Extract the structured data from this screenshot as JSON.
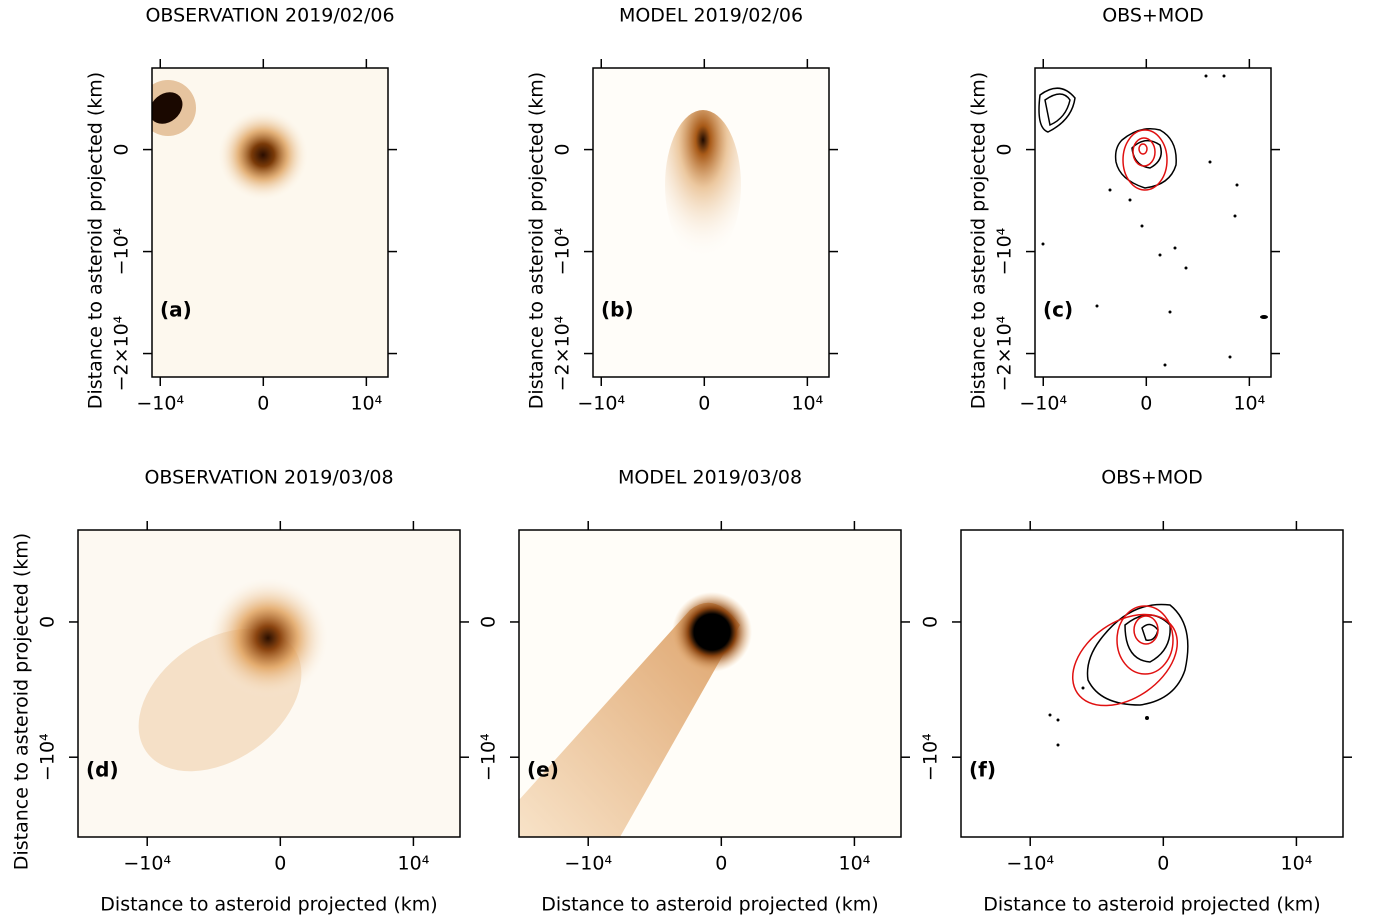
{
  "chart_data": [
    {
      "type": "image",
      "title": "OBSERVATION 2019/02/06",
      "panel_label": "(a)",
      "ylabel": "Distance to asteroid projected (km)",
      "xlim": [
        -10800,
        12100
      ],
      "ylim": [
        -22300,
        8000
      ],
      "xticks": [
        {
          "value": -10000,
          "label": "−10⁴"
        },
        0,
        {
          "value": 10000,
          "label": "10⁴"
        }
      ],
      "yticks": [
        {
          "value": -20000,
          "label": "−2×10⁴"
        },
        {
          "value": -10000,
          "label": "−10⁴"
        },
        0
      ]
    },
    {
      "type": "image",
      "title": "MODEL 2019/02/06",
      "panel_label": "(b)",
      "ylabel": "Distance to asteroid projected (km)",
      "xlim": [
        -10800,
        12100
      ],
      "ylim": [
        -22300,
        8000
      ],
      "xticks": [
        {
          "value": -10000,
          "label": "−10⁴"
        },
        0,
        {
          "value": 10000,
          "label": "10⁴"
        }
      ],
      "yticks": [
        {
          "value": -20000,
          "label": "−2×10⁴"
        },
        {
          "value": -10000,
          "label": "−10⁴"
        },
        0
      ]
    },
    {
      "type": "image",
      "title": "OBS+MOD",
      "panel_label": "(c)",
      "ylabel": "Distance to asteroid projected (km)",
      "xlim": [
        -10800,
        12100
      ],
      "ylim": [
        -22300,
        8000
      ],
      "xticks": [
        {
          "value": -10000,
          "label": "−10⁴"
        },
        0,
        {
          "value": 10000,
          "label": "10⁴"
        }
      ],
      "yticks": [
        {
          "value": -20000,
          "label": "−2×10⁴"
        },
        {
          "value": -10000,
          "label": "−10⁴"
        },
        0
      ]
    },
    {
      "type": "image",
      "title": "OBSERVATION 2019/03/08",
      "panel_label": "(d)",
      "xlabel": "Distance to asteroid projected (km)",
      "ylabel": "Distance to asteroid projected (km)",
      "xlim": [
        -15200,
        13500
      ],
      "ylim": [
        -15900,
        6800
      ],
      "xticks": [
        {
          "value": -10000,
          "label": "−10⁴"
        },
        0,
        {
          "value": 10000,
          "label": "10⁴"
        }
      ],
      "yticks": [
        {
          "value": -10000,
          "label": "−10⁴"
        },
        0
      ]
    },
    {
      "type": "image",
      "title": "MODEL 2019/03/08",
      "panel_label": "(e)",
      "xlabel": "Distance to asteroid projected (km)",
      "xlim": [
        -15200,
        13500
      ],
      "ylim": [
        -15900,
        6800
      ],
      "xticks": [
        {
          "value": -10000,
          "label": "−10⁴"
        },
        0,
        {
          "value": 10000,
          "label": "10⁴"
        }
      ],
      "yticks": [
        {
          "value": -10000,
          "label": "−10⁴"
        },
        0
      ]
    },
    {
      "type": "image",
      "title": "OBS+MOD",
      "panel_label": "(f)",
      "xlabel": "Distance to asteroid projected (km)",
      "xlim": [
        -15200,
        13500
      ],
      "ylim": [
        -15900,
        6800
      ],
      "xticks": [
        {
          "value": -10000,
          "label": "−10⁴"
        },
        0,
        {
          "value": 10000,
          "label": "10⁴"
        }
      ],
      "yticks": [
        {
          "value": -10000,
          "label": "−10⁴"
        },
        0
      ]
    }
  ]
}
